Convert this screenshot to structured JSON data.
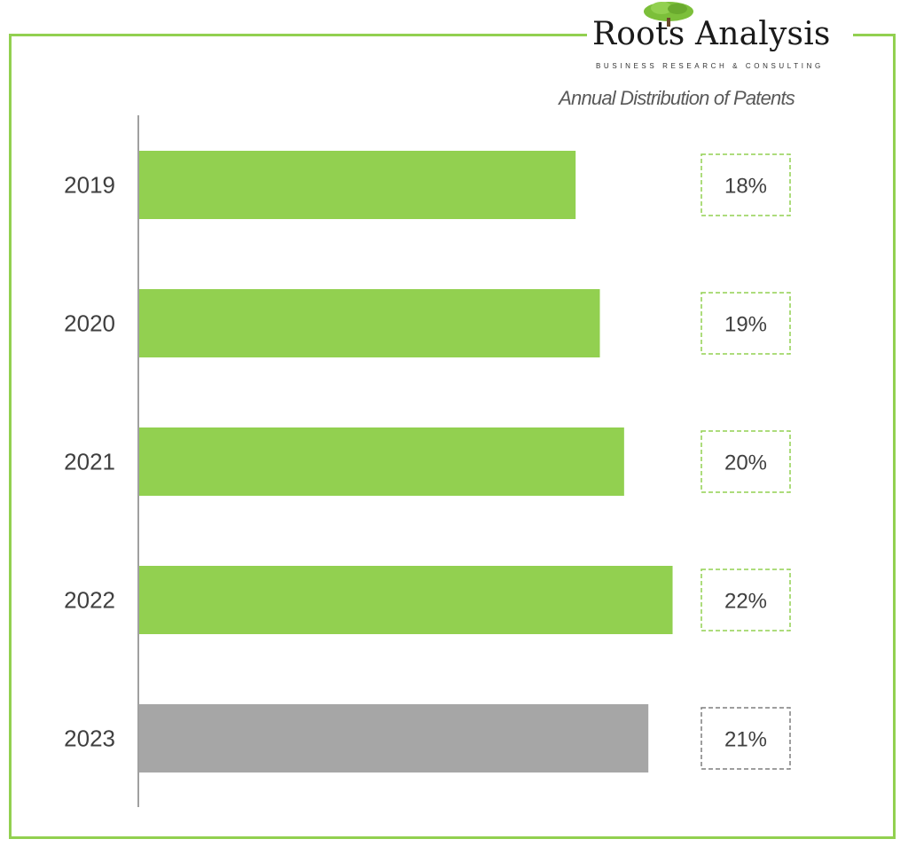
{
  "brand": {
    "name": "Roots Analysis",
    "tagline": "BUSINESS RESEARCH & CONSULTING",
    "logo_icon": "tree-icon"
  },
  "chart_data": {
    "type": "bar",
    "orientation": "horizontal",
    "title": "Annual Distribution of Patents",
    "categories": [
      "2019",
      "2020",
      "2021",
      "2022",
      "2023"
    ],
    "values": [
      18,
      19,
      20,
      22,
      21
    ],
    "labels": [
      "18%",
      "19%",
      "20%",
      "22%",
      "21%"
    ],
    "unit": "%",
    "xlim": [
      0,
      22.2
    ],
    "grid": false,
    "colors": {
      "bar": "#92d050",
      "highlight_bar": "#a6a6a6",
      "highlight_index": 4,
      "frame": "#92d050",
      "label_box": "#92d050",
      "highlight_label_box": "#7f7f7f"
    }
  }
}
